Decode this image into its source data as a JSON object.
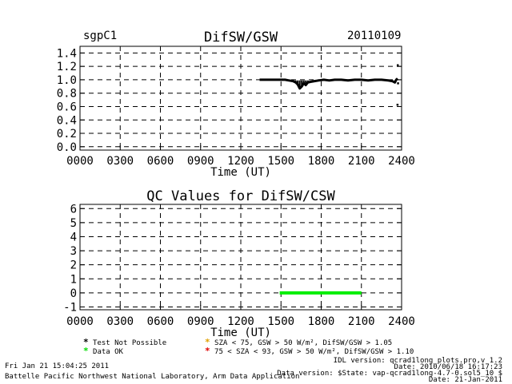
{
  "header": {
    "site": "sgpC1",
    "date": "20110109"
  },
  "chart_data": [
    {
      "type": "line",
      "title": "DifSW/GSW",
      "xlabel": "Time (UT)",
      "ylabel": "",
      "x_ticks": [
        "0000",
        "0300",
        "0600",
        "0900",
        "1200",
        "1500",
        "1800",
        "2100",
        "2400"
      ],
      "y_ticks": [
        "0.0",
        "0.2",
        "0.4",
        "0.6",
        "0.8",
        "1.0",
        "1.2",
        "1.4"
      ],
      "xlim": [
        0,
        24
      ],
      "ylim": [
        -0.05,
        1.5
      ],
      "grid": true,
      "series": [
        {
          "x": [
            13.4,
            13.8,
            14.2,
            14.6,
            15.0,
            15.3,
            15.6,
            15.9,
            16.1,
            16.25,
            16.4,
            16.55,
            16.7,
            16.85,
            17.0,
            17.2,
            17.5,
            17.8,
            18.2,
            18.6,
            19.0,
            19.5,
            20.0,
            20.5,
            21.0,
            21.5,
            22.0,
            22.5,
            23.0,
            23.3,
            23.5,
            23.6,
            23.7
          ],
          "y": [
            1.0,
            1.0,
            1.0,
            1.0,
            1.0,
            1.0,
            0.99,
            0.98,
            0.96,
            0.93,
            0.87,
            0.9,
            0.95,
            0.92,
            0.96,
            0.97,
            0.98,
            0.99,
            1.0,
            0.99,
            1.0,
            1.0,
            0.99,
            1.0,
            1.0,
            0.99,
            1.0,
            1.0,
            0.99,
            0.98,
            0.96,
            1.0,
            1.02
          ]
        }
      ],
      "outliers": {
        "x": [
          23.7,
          23.72,
          23.68
        ],
        "y": [
          1.22,
          0.95,
          0.63
        ]
      }
    },
    {
      "type": "line",
      "title": "QC Values for DifSW/CSW",
      "xlabel": "Time (UT)",
      "ylabel": "",
      "x_ticks": [
        "0000",
        "0300",
        "0600",
        "0900",
        "1200",
        "1500",
        "1800",
        "2100",
        "2400"
      ],
      "y_ticks": [
        "-1",
        "0",
        "1",
        "2",
        "3",
        "4",
        "5",
        "6"
      ],
      "xlim": [
        0,
        24
      ],
      "ylim": [
        -1.2,
        6.3
      ],
      "grid": true,
      "series": [
        {
          "x": [
            14.9,
            21.0
          ],
          "y": [
            0,
            0
          ],
          "color": "#00ee00"
        }
      ]
    }
  ],
  "legend": {
    "items": [
      {
        "symbol": "*",
        "color": "#000000",
        "label": "Test Not Possible"
      },
      {
        "symbol": "*",
        "color": "#00dd00",
        "label": "Data OK"
      },
      {
        "symbol": "*",
        "color": "#e0a000",
        "label": "SZA < 75, GSW > 50 W/m², DifSW/GSW > 1.05"
      },
      {
        "symbol": "*",
        "color": "#e00000",
        "label": "75 < SZA < 93, GSW > 50 W/m², DifSW/GSW > 1.10"
      }
    ]
  },
  "footer": {
    "run_time": "Fri Jan 21 15:04:25 2011",
    "lab": "Battelle Pacific Northwest National Laboratory, Arm Data Application",
    "idl_version": "IDL version: qcrad1long_plots.pro,v 1.2",
    "idl_date": "Date: 2010/06/18 16:17:23",
    "data_version": "Data version: $State: vap-qcrad1long-4.7-0.sol5_10 $",
    "data_date": "Date: 21-Jan-2011"
  }
}
